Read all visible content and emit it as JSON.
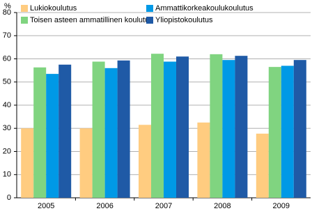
{
  "chart_data": {
    "type": "bar",
    "y_label": "%",
    "categories": [
      "2005",
      "2006",
      "2007",
      "2008",
      "2009"
    ],
    "series": [
      {
        "name": "Lukiokoulutus",
        "color": "#ffcc80",
        "values": [
          30,
          30,
          31.5,
          32.5,
          27.7
        ]
      },
      {
        "name": "Toisen asteen ammatillinen koulutus",
        "color": "#80d480",
        "values": [
          56.3,
          58.8,
          62.2,
          62,
          56.5
        ]
      },
      {
        "name": "Ammattikorkeakoulukoulutus",
        "color": "#0099e6",
        "values": [
          53.5,
          56,
          58.8,
          59.5,
          57
        ]
      },
      {
        "name": "Yliopistokoulutus",
        "color": "#1f5aa6",
        "values": [
          57.5,
          59.3,
          61,
          61.3,
          59.5
        ]
      }
    ],
    "ylim": [
      0,
      80
    ],
    "yticks": [
      0,
      10,
      20,
      30,
      40,
      50,
      60,
      70,
      80
    ],
    "grid": true,
    "legend": "top"
  }
}
